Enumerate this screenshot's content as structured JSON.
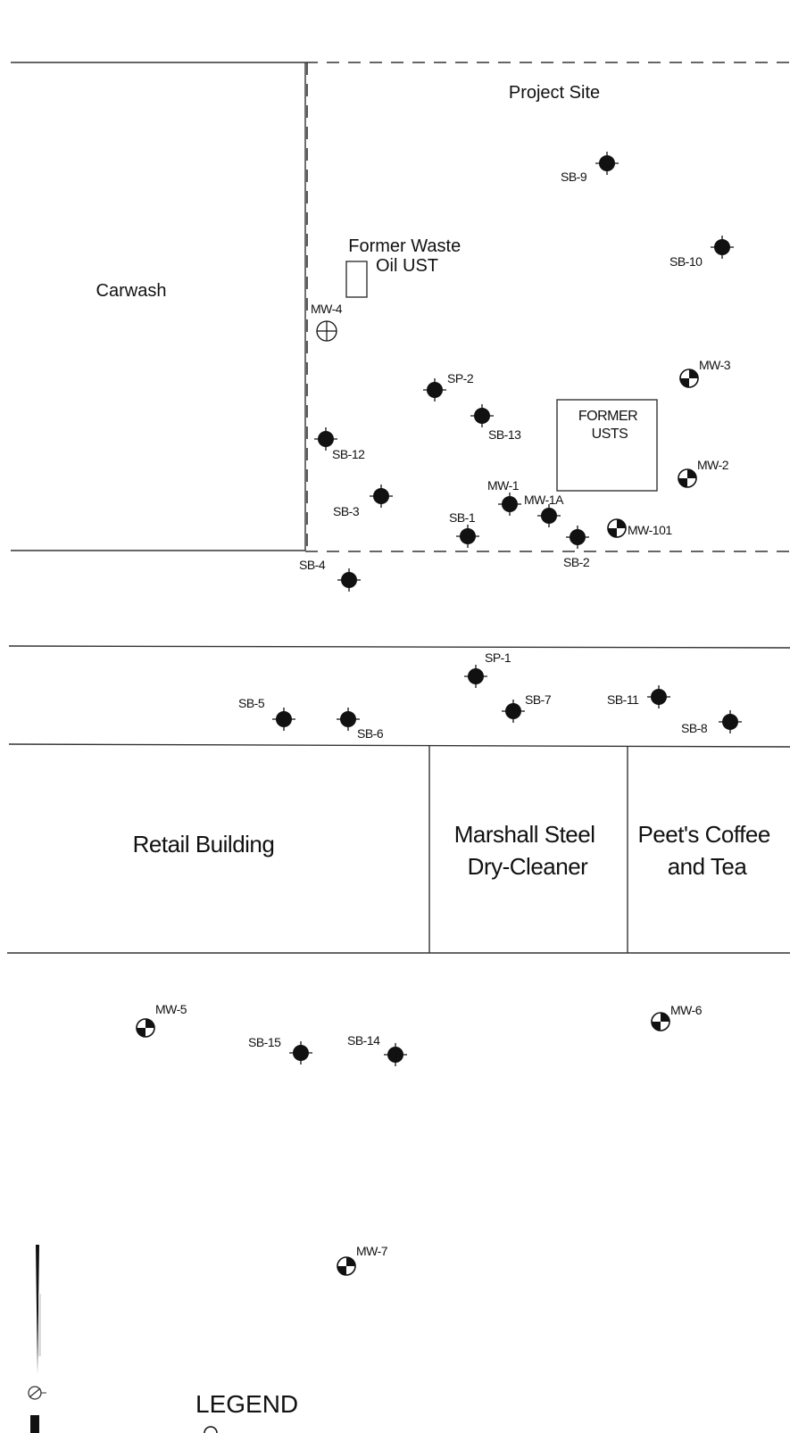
{
  "areas": {
    "project_site": "Project Site",
    "carwash": "Carwash",
    "former_waste_oil_ust": [
      "Former Waste",
      "Oil UST"
    ],
    "former_usts": [
      "FORMER",
      "USTS"
    ]
  },
  "buildings": {
    "retail": [
      "Retail Building"
    ],
    "dry_cleaner": [
      "Marshall Steel",
      "Dry-Cleaner"
    ],
    "peets": [
      "Peet's Coffee",
      "and Tea"
    ]
  },
  "legend": {
    "title": "LEGEND"
  },
  "points": [
    {
      "id": "SB-9",
      "kind": "soil-boring"
    },
    {
      "id": "SB-10",
      "kind": "soil-boring"
    },
    {
      "id": "MW-4",
      "kind": "destroyed-well"
    },
    {
      "id": "MW-3",
      "kind": "monitoring-well"
    },
    {
      "id": "SP-2",
      "kind": "soil-boring"
    },
    {
      "id": "SB-13",
      "kind": "soil-boring"
    },
    {
      "id": "SB-12",
      "kind": "soil-boring"
    },
    {
      "id": "MW-2",
      "kind": "monitoring-well"
    },
    {
      "id": "SB-3",
      "kind": "soil-boring"
    },
    {
      "id": "MW-1",
      "kind": "soil-boring"
    },
    {
      "id": "MW-1A",
      "kind": "soil-boring"
    },
    {
      "id": "SB-1",
      "kind": "soil-boring"
    },
    {
      "id": "SB-2",
      "kind": "soil-boring"
    },
    {
      "id": "MW-101",
      "kind": "monitoring-well"
    },
    {
      "id": "SB-4",
      "kind": "soil-boring"
    },
    {
      "id": "SP-1",
      "kind": "soil-boring"
    },
    {
      "id": "SB-5",
      "kind": "soil-boring"
    },
    {
      "id": "SB-6",
      "kind": "soil-boring"
    },
    {
      "id": "SB-7",
      "kind": "soil-boring"
    },
    {
      "id": "SB-11",
      "kind": "soil-boring"
    },
    {
      "id": "SB-8",
      "kind": "soil-boring"
    },
    {
      "id": "MW-5",
      "kind": "monitoring-well"
    },
    {
      "id": "SB-15",
      "kind": "soil-boring"
    },
    {
      "id": "SB-14",
      "kind": "soil-boring"
    },
    {
      "id": "MW-6",
      "kind": "monitoring-well"
    },
    {
      "id": "MW-7",
      "kind": "monitoring-well"
    }
  ]
}
